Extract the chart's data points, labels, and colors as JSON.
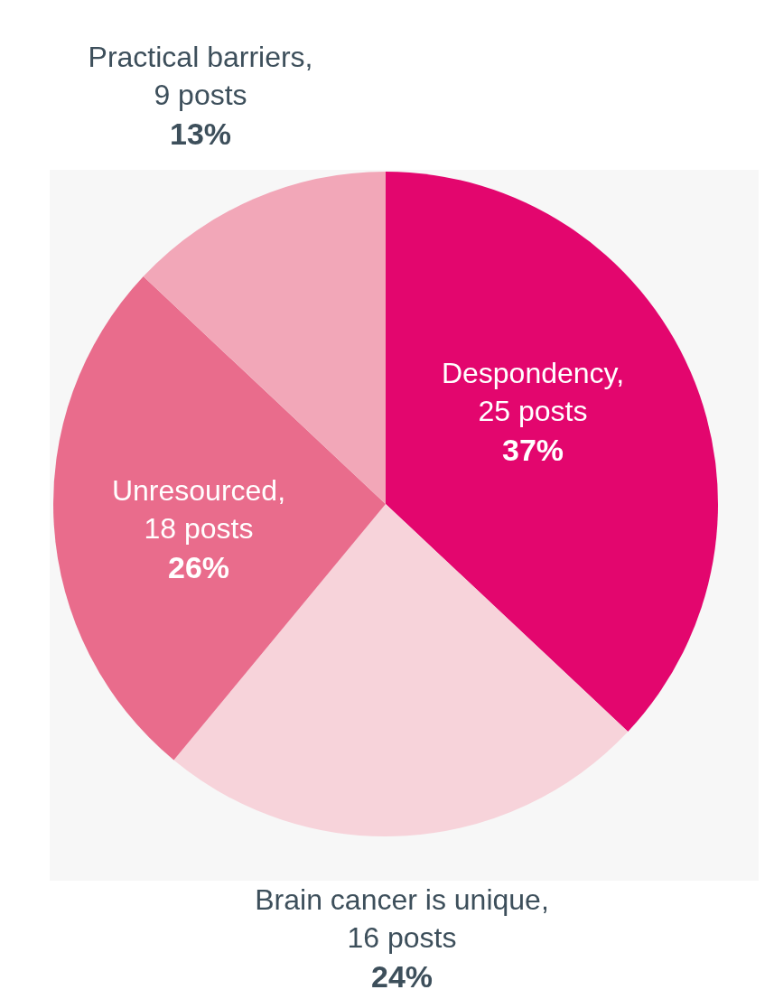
{
  "chart_data": {
    "type": "pie",
    "categories": [
      "Despondency,\n25 posts",
      "Brain cancer is unique,\n16 posts",
      "Unresourced,\n18 posts",
      "Practical barriers,\n9 posts"
    ],
    "values": [
      37,
      24,
      26,
      13
    ],
    "value_labels": [
      "37%",
      "24%",
      "26%",
      "13%"
    ],
    "colors": [
      "#e3066e",
      "#f7d3da",
      "#e96c8c",
      "#f2a7b8"
    ],
    "legend": false
  }
}
